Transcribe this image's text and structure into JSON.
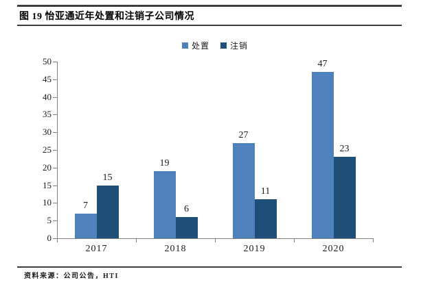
{
  "figure": {
    "title": "图 19 怡亚通近年处置和注销子公司情况",
    "source": "资料来源：公司公告，HTI"
  },
  "colors": {
    "series_dispose": "#4F81BD",
    "series_cancel": "#1F4E79",
    "axis": "#808080",
    "text": "#1a1a1a"
  },
  "chart_data": {
    "type": "bar",
    "categories": [
      "2017",
      "2018",
      "2019",
      "2020"
    ],
    "series": [
      {
        "name": "处置",
        "color": "#4F81BD",
        "values": [
          7,
          19,
          27,
          47
        ]
      },
      {
        "name": "注销",
        "color": "#1F4E79",
        "values": [
          15,
          6,
          11,
          23
        ]
      }
    ],
    "title": "",
    "xlabel": "",
    "ylabel": "",
    "ylim": [
      0,
      50
    ],
    "ytick_step": 5,
    "grid": false,
    "legend_position": "top-center",
    "value_labels": true
  }
}
